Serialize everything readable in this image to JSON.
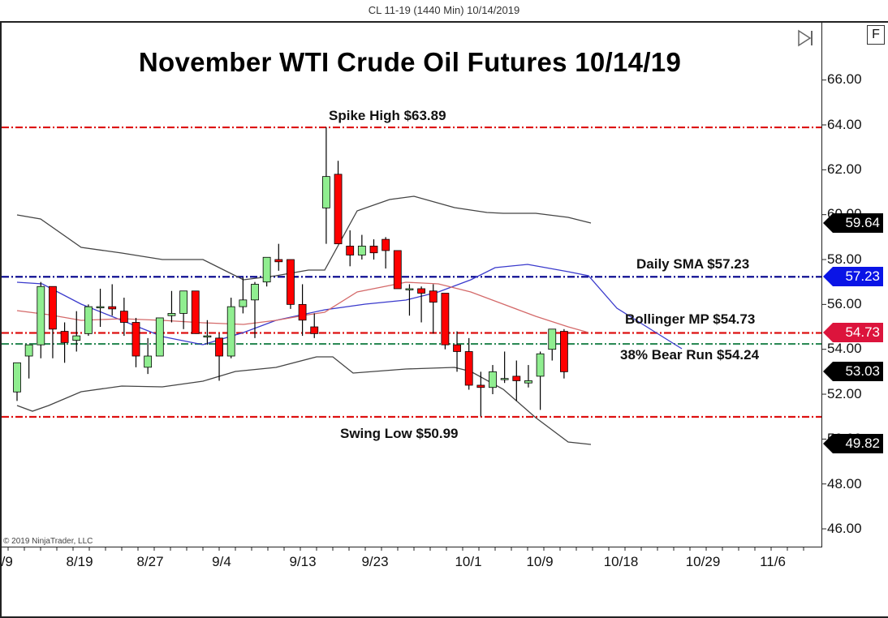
{
  "window": {
    "title": "CL 11-19 (1440 Min)  10/14/2019"
  },
  "toolbar": {
    "f_button_label": "F",
    "goto_end_icon": "skip-to-end-icon"
  },
  "copyright": "© 2019 NinjaTrader, LLC",
  "chart_data": {
    "type": "candlestick",
    "title": "November WTI Crude Oil Futures 10/14/19",
    "instrument": "CL 11-19",
    "xlabel": "",
    "ylabel": "",
    "ylim": [
      45.0,
      66.9
    ],
    "y_ticks": [
      "66.00",
      "64.00",
      "62.00",
      "60.00",
      "58.00",
      "56.00",
      "54.00",
      "52.00",
      "50.00",
      "48.00",
      "46.00"
    ],
    "x_ticks": [
      "8/9",
      "8/19",
      "8/27",
      "9/4",
      "9/13",
      "9/23",
      "10/1",
      "10/9",
      "10/18",
      "10/29",
      "11/6"
    ],
    "grid": false,
    "candles": [
      {
        "o": 52.1,
        "h": 53.4,
        "l": 51.7,
        "c": 53.4
      },
      {
        "o": 53.7,
        "h": 54.2,
        "l": 52.7,
        "c": 54.2
      },
      {
        "o": 54.2,
        "h": 57.0,
        "l": 53.6,
        "c": 56.8
      },
      {
        "o": 56.8,
        "h": 56.8,
        "l": 53.6,
        "c": 54.9
      },
      {
        "o": 54.8,
        "h": 55.2,
        "l": 53.4,
        "c": 54.3
      },
      {
        "o": 54.4,
        "h": 55.7,
        "l": 53.9,
        "c": 54.6
      },
      {
        "o": 54.7,
        "h": 56.0,
        "l": 54.6,
        "c": 55.9
      },
      {
        "o": 55.9,
        "h": 56.7,
        "l": 55.0,
        "c": 55.9
      },
      {
        "o": 55.9,
        "h": 56.9,
        "l": 55.5,
        "c": 55.8
      },
      {
        "o": 55.7,
        "h": 56.3,
        "l": 54.6,
        "c": 55.2
      },
      {
        "o": 55.2,
        "h": 55.4,
        "l": 53.2,
        "c": 53.7
      },
      {
        "o": 53.2,
        "h": 54.5,
        "l": 52.9,
        "c": 53.7
      },
      {
        "o": 53.7,
        "h": 55.4,
        "l": 53.7,
        "c": 55.4
      },
      {
        "o": 55.5,
        "h": 56.6,
        "l": 55.2,
        "c": 55.6
      },
      {
        "o": 55.6,
        "h": 56.6,
        "l": 54.9,
        "c": 56.6
      },
      {
        "o": 56.6,
        "h": 56.6,
        "l": 54.8,
        "c": 54.7
      },
      {
        "o": 54.6,
        "h": 55.3,
        "l": 54.2,
        "c": 54.6
      },
      {
        "o": 54.5,
        "h": 54.7,
        "l": 52.6,
        "c": 53.7
      },
      {
        "o": 53.7,
        "h": 56.3,
        "l": 53.6,
        "c": 55.9
      },
      {
        "o": 55.9,
        "h": 57.2,
        "l": 55.6,
        "c": 56.2
      },
      {
        "o": 56.2,
        "h": 57.0,
        "l": 54.5,
        "c": 56.9
      },
      {
        "o": 57.0,
        "h": 58.0,
        "l": 56.8,
        "c": 58.1
      },
      {
        "o": 58.0,
        "h": 58.7,
        "l": 57.5,
        "c": 57.9
      },
      {
        "o": 58.0,
        "h": 57.9,
        "l": 55.8,
        "c": 56.0
      },
      {
        "o": 56.0,
        "h": 56.9,
        "l": 54.6,
        "c": 55.3
      },
      {
        "o": 55.0,
        "h": 55.6,
        "l": 54.5,
        "c": 54.7
      },
      {
        "o": 60.3,
        "h": 63.9,
        "l": 58.7,
        "c": 61.7
      },
      {
        "o": 61.8,
        "h": 62.4,
        "l": 58.9,
        "c": 58.7
      },
      {
        "o": 58.6,
        "h": 59.3,
        "l": 57.7,
        "c": 58.2
      },
      {
        "o": 58.2,
        "h": 59.1,
        "l": 58.0,
        "c": 58.6
      },
      {
        "o": 58.6,
        "h": 58.9,
        "l": 58.0,
        "c": 58.3
      },
      {
        "o": 58.9,
        "h": 59.0,
        "l": 57.6,
        "c": 58.4
      },
      {
        "o": 58.4,
        "h": 58.4,
        "l": 56.7,
        "c": 56.7
      },
      {
        "o": 56.7,
        "h": 56.9,
        "l": 55.5,
        "c": 56.7
      },
      {
        "o": 56.7,
        "h": 56.8,
        "l": 55.2,
        "c": 56.5
      },
      {
        "o": 56.6,
        "h": 56.9,
        "l": 54.7,
        "c": 56.1
      },
      {
        "o": 56.5,
        "h": 56.5,
        "l": 54.0,
        "c": 54.2
      },
      {
        "o": 54.2,
        "h": 54.8,
        "l": 53.0,
        "c": 53.9
      },
      {
        "o": 53.9,
        "h": 54.5,
        "l": 52.2,
        "c": 52.4
      },
      {
        "o": 52.4,
        "h": 53.0,
        "l": 51.0,
        "c": 52.3
      },
      {
        "o": 52.3,
        "h": 53.3,
        "l": 52.0,
        "c": 53.0
      },
      {
        "o": 52.7,
        "h": 53.9,
        "l": 52.5,
        "c": 52.7
      },
      {
        "o": 52.8,
        "h": 53.5,
        "l": 51.7,
        "c": 52.6
      },
      {
        "o": 52.5,
        "h": 53.3,
        "l": 52.3,
        "c": 52.6
      },
      {
        "o": 52.8,
        "h": 53.9,
        "l": 51.3,
        "c": 53.8
      },
      {
        "o": 54.0,
        "h": 54.8,
        "l": 53.5,
        "c": 54.9
      },
      {
        "o": 54.8,
        "h": 54.9,
        "l": 52.7,
        "c": 53.0
      }
    ],
    "overlays": {
      "sma_blue": {
        "name": "Daily SMA",
        "color": "#3a3acc",
        "points": [
          [
            21,
            348
          ],
          [
            52,
            350
          ],
          [
            100,
            375
          ],
          [
            150,
            395
          ],
          [
            200,
            415
          ],
          [
            250,
            425
          ],
          [
            300,
            410
          ],
          [
            340,
            395
          ],
          [
            400,
            382
          ],
          [
            450,
            375
          ],
          [
            500,
            370
          ],
          [
            540,
            360
          ],
          [
            580,
            345
          ],
          [
            610,
            330
          ],
          [
            650,
            326
          ],
          [
            700,
            335
          ],
          [
            725,
            340
          ],
          [
            760,
            380
          ],
          [
            800,
            405
          ],
          [
            840,
            430
          ]
        ]
      },
      "bollinger_mid": {
        "name": "Bollinger MP",
        "color": "#d46a6a",
        "points": [
          [
            21,
            383
          ],
          [
            60,
            388
          ],
          [
            100,
            395
          ],
          [
            150,
            393
          ],
          [
            200,
            395
          ],
          [
            250,
            398
          ],
          [
            300,
            400
          ],
          [
            340,
            395
          ],
          [
            380,
            388
          ],
          [
            400,
            385
          ],
          [
            440,
            360
          ],
          [
            500,
            348
          ],
          [
            540,
            350
          ],
          [
            580,
            360
          ],
          [
            620,
            375
          ],
          [
            660,
            390
          ],
          [
            700,
            403
          ],
          [
            725,
            410
          ]
        ]
      },
      "bollinger_upper": {
        "name": "Bollinger Upper",
        "color": "#444444",
        "points": [
          [
            21,
            265
          ],
          [
            50,
            270
          ],
          [
            100,
            305
          ],
          [
            150,
            312
          ],
          [
            200,
            320
          ],
          [
            250,
            320
          ],
          [
            280,
            335
          ],
          [
            300,
            345
          ],
          [
            340,
            340
          ],
          [
            380,
            333
          ],
          [
            400,
            333
          ],
          [
            440,
            260
          ],
          [
            480,
            246
          ],
          [
            510,
            242
          ],
          [
            560,
            256
          ],
          [
            600,
            262
          ],
          [
            620,
            263
          ],
          [
            660,
            263
          ],
          [
            700,
            268
          ],
          [
            728,
            275
          ]
        ]
      },
      "bollinger_lower": {
        "name": "Bollinger Lower",
        "color": "#444444",
        "points": [
          [
            21,
            500
          ],
          [
            40,
            507
          ],
          [
            60,
            500
          ],
          [
            100,
            483
          ],
          [
            150,
            476
          ],
          [
            200,
            477
          ],
          [
            250,
            470
          ],
          [
            290,
            458
          ],
          [
            340,
            453
          ],
          [
            390,
            440
          ],
          [
            410,
            440
          ],
          [
            435,
            460
          ],
          [
            500,
            455
          ],
          [
            560,
            453
          ],
          [
            580,
            458
          ],
          [
            620,
            480
          ],
          [
            660,
            515
          ],
          [
            700,
            545
          ],
          [
            728,
            548
          ]
        ]
      }
    },
    "horizontal_lines": [
      {
        "label": "Spike High $63.89",
        "price": 63.89,
        "color": "#dd1111",
        "style": "dash-dot"
      },
      {
        "label": "Daily SMA $57.23",
        "price": 57.23,
        "color": "#00008b",
        "style": "dash-dot"
      },
      {
        "label": "Bollinger MP $54.73",
        "price": 54.73,
        "color": "#dd1111",
        "style": "dash-dot"
      },
      {
        "label": "38% Bear Run $54.24",
        "price": 54.24,
        "color": "#2e8b57",
        "style": "dash-dot"
      },
      {
        "label": "Swing Low $50.99",
        "price": 50.99,
        "color": "#dd1111",
        "style": "dash-dot"
      }
    ],
    "price_tags": [
      {
        "value": "59.64",
        "bg": "#000000",
        "price": 59.64
      },
      {
        "value": "57.23",
        "bg": "#0a14e6",
        "price": 57.23
      },
      {
        "value": "54.73",
        "bg": "#dc143c",
        "price": 54.73
      },
      {
        "value": "53.03",
        "bg": "#000000",
        "price": 53.03
      },
      {
        "value": "49.82",
        "bg": "#000000",
        "price": 49.82
      }
    ],
    "colors": {
      "up": "#90ee90",
      "down": "#ff0000",
      "wick": "#000000"
    }
  },
  "annotations": {
    "spike_high": "Spike High $63.89",
    "daily_sma": "Daily SMA $57.23",
    "bollinger_mp": "Bollinger MP $54.73",
    "bear_run": "38% Bear Run $54.24",
    "swing_low": "Swing Low $50.99"
  },
  "axis": {
    "y": [
      "66.00",
      "64.00",
      "62.00",
      "60.00",
      "58.00",
      "56.00",
      "54.00",
      "52.00",
      "50.00",
      "48.00",
      "46.00"
    ],
    "x": [
      "8/9",
      "8/19",
      "8/27",
      "9/4",
      "9/13",
      "9/23",
      "10/1",
      "10/9",
      "10/18",
      "10/29",
      "11/6"
    ]
  },
  "tags": [
    "59.64",
    "57.23",
    "54.73",
    "53.03",
    "49.82"
  ]
}
